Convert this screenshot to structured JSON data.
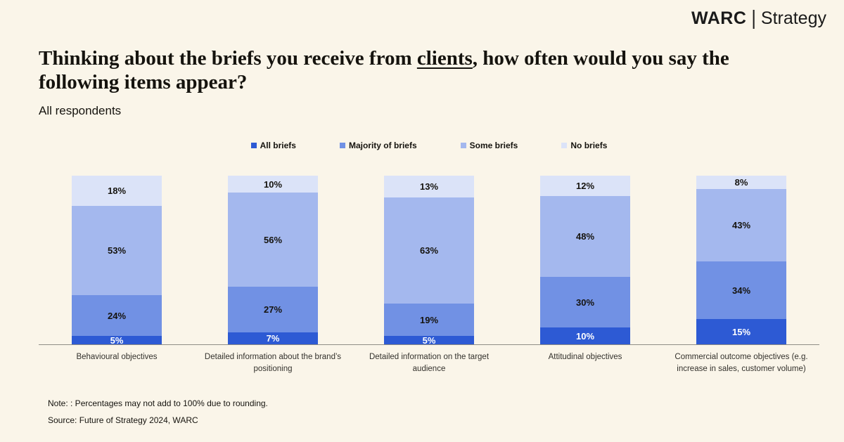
{
  "brand": {
    "warc": "WARC",
    "divider": "|",
    "strategy": "Strategy"
  },
  "title": {
    "pre": "Thinking about the briefs you receive from ",
    "underlined": "clients",
    "post": ", how often would you say the following items appear?"
  },
  "subtitle": "All respondents",
  "chart_data": {
    "type": "bar",
    "stacked": true,
    "orientation": "vertical",
    "unit": "%",
    "ylim": [
      0,
      100
    ],
    "grid": false,
    "legend_position": "top-center",
    "categories": [
      "Behavioural objectives",
      "Detailed information about the brand’s positioning",
      "Detailed information on the target audience",
      "Attitudinal objectives",
      "Commercial outcome objectives (e.g. increase in sales, customer volume)"
    ],
    "series": [
      {
        "name": "All briefs",
        "color": "#2d5ad4",
        "label_color": "#ffffff",
        "values": [
          5,
          7,
          5,
          10,
          15
        ]
      },
      {
        "name": "Majority of briefs",
        "color": "#7191e4",
        "label_color": "#15130e",
        "values": [
          24,
          27,
          19,
          30,
          34
        ]
      },
      {
        "name": "Some briefs",
        "color": "#a4b8ee",
        "label_color": "#15130e",
        "values": [
          53,
          56,
          63,
          48,
          43
        ]
      },
      {
        "name": "No briefs",
        "color": "#dbe3f8",
        "label_color": "#15130e",
        "values": [
          18,
          10,
          13,
          12,
          8
        ]
      }
    ]
  },
  "note": "Note: : Percentages may not add to 100% due to rounding.",
  "source": "Source: Future of Strategy 2024, WARC",
  "colors": {
    "background": "#faf5e9",
    "axis": "#8f8d85",
    "text": "#15130e"
  }
}
